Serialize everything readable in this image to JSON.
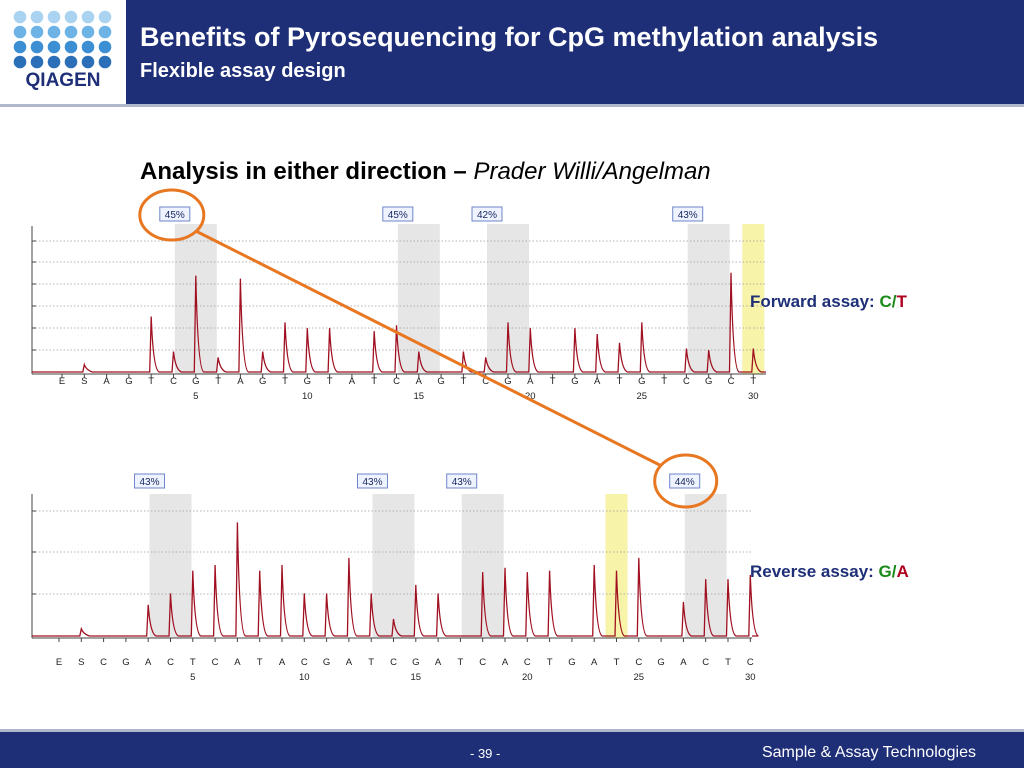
{
  "header": {
    "title": "Benefits of Pyrosequencing for CpG methylation analysis",
    "subtitle": "Flexible assay design",
    "logo_text": "QIAGEN",
    "logo_icon": "dot-grid-logo-icon"
  },
  "section": {
    "heading_bold": "Analysis in either direction – ",
    "heading_italic": "Prader Willi/Angelman"
  },
  "labels": {
    "forward": {
      "prefix": "Forward assay: ",
      "a": "C",
      "slash": "/",
      "b": "T"
    },
    "reverse": {
      "prefix": "Reverse assay: ",
      "a": "G",
      "slash": "/",
      "b": "A"
    }
  },
  "colors": {
    "brand_blue": "#1e2f78",
    "peak_red": "#a01020",
    "highlight_orange": "#e87722",
    "variable_gray": "#e6e6e6",
    "snp_yellow": "#f7f3a8"
  },
  "footer": {
    "page": "- 39 -",
    "brand": "Sample & Assay Technologies"
  },
  "chart_data": [
    {
      "type": "line",
      "name": "pyrogram-forward",
      "dispensation": [
        "E",
        "S",
        "A",
        "G",
        "T",
        "C",
        "G",
        "T",
        "A",
        "G",
        "T",
        "G",
        "T",
        "A",
        "T",
        "C",
        "A",
        "G",
        "T",
        "C",
        "G",
        "A",
        "T",
        "G",
        "A",
        "T",
        "G",
        "T",
        "C",
        "G",
        "C",
        "T"
      ],
      "position_ticks": [
        "5",
        "10",
        "15",
        "20",
        "25",
        "30"
      ],
      "peaks": [
        0,
        0.05,
        0,
        0,
        0.38,
        0.14,
        0.66,
        0.1,
        0.64,
        0.14,
        0.34,
        0.3,
        0.3,
        0,
        0.28,
        0.32,
        0.14,
        0,
        0.14,
        0.1,
        0.34,
        0.3,
        0,
        0.3,
        0.26,
        0.2,
        0.34,
        0,
        0.16,
        0.15,
        0.68,
        0.16
      ],
      "methylation_sites": [
        {
          "position": 6,
          "label": "45%"
        },
        {
          "position": 16,
          "label": "45%"
        },
        {
          "position": 20,
          "label": "42%"
        },
        {
          "position": 29,
          "label": "43%"
        }
      ],
      "snp_position": 31
    },
    {
      "type": "line",
      "name": "pyrogram-reverse",
      "dispensation": [
        "E",
        "S",
        "C",
        "G",
        "A",
        "C",
        "T",
        "C",
        "A",
        "T",
        "A",
        "C",
        "G",
        "A",
        "T",
        "C",
        "G",
        "A",
        "T",
        "C",
        "A",
        "C",
        "T",
        "G",
        "A",
        "T",
        "C",
        "G",
        "A",
        "C",
        "T",
        "C"
      ],
      "position_ticks": [
        "5",
        "10",
        "15",
        "20",
        "25",
        "30"
      ],
      "peaks": [
        0,
        0.05,
        0,
        0,
        0.22,
        0.3,
        0.46,
        0.5,
        0.8,
        0.46,
        0.5,
        0.3,
        0.3,
        0.55,
        0.3,
        0.12,
        0.36,
        0.3,
        0,
        0.45,
        0.48,
        0.45,
        0.46,
        0,
        0.5,
        0.46,
        0.55,
        0,
        0.24,
        0.4,
        0.4,
        0.43
      ],
      "methylation_sites": [
        {
          "position": 5,
          "label": "43%"
        },
        {
          "position": 15,
          "label": "43%"
        },
        {
          "position": 19,
          "label": "43%"
        },
        {
          "position": 29,
          "label": "44%"
        }
      ],
      "snp_position": 25
    }
  ]
}
